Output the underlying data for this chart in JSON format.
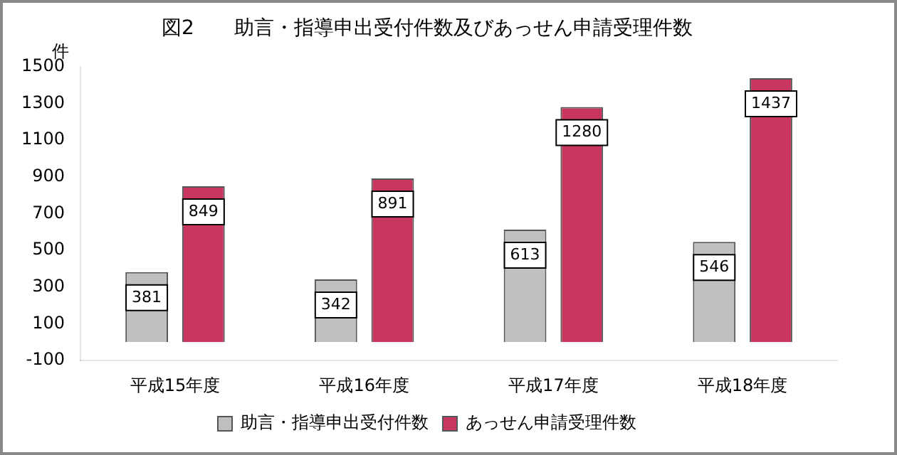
{
  "chart_data": {
    "type": "bar",
    "title": "図2　　助言・指導申出受付件数及びあっせん申請受理件数",
    "ylabel": "件",
    "categories": [
      "平成15年度",
      "平成16年度",
      "平成17年度",
      "平成18年度"
    ],
    "series": [
      {
        "name": "助言・指導申出受付件数",
        "color": "#c0c0c0",
        "values": [
          381,
          342,
          613,
          546
        ]
      },
      {
        "name": "あっせん申請受理件数",
        "color": "#c8365f",
        "values": [
          849,
          891,
          1280,
          1437
        ]
      }
    ],
    "ylim": [
      -100,
      1500
    ],
    "yticks": [
      -100,
      100,
      300,
      500,
      700,
      900,
      1100,
      1300,
      1500
    ],
    "grid": false,
    "legend": "bottom",
    "data_labels": true
  }
}
